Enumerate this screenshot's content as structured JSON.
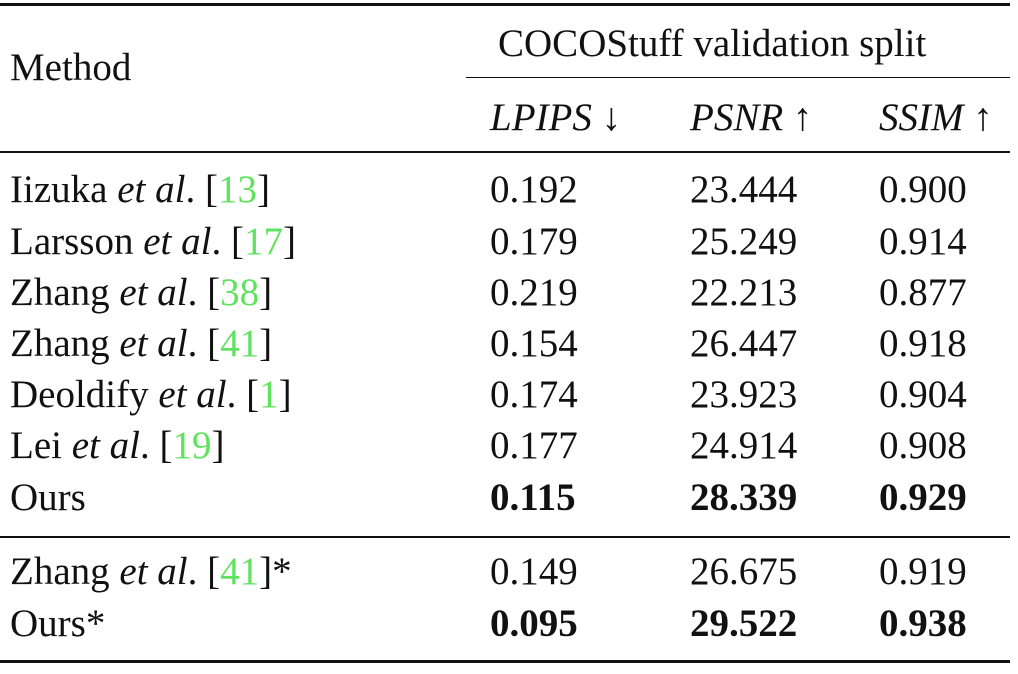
{
  "header": {
    "method": "Method",
    "group": "COCOStuff validation split",
    "metrics": [
      {
        "name": "LPIPS",
        "arrow": "↓"
      },
      {
        "name": "PSNR",
        "arrow": "↑"
      },
      {
        "name": "SSIM",
        "arrow": "↑"
      }
    ]
  },
  "rows": [
    {
      "name": "Iizuka",
      "etal": "et al",
      "cite": "13",
      "suffix": "",
      "lpips": "0.192",
      "psnr": "23.444",
      "ssim": "0.900"
    },
    {
      "name": "Larsson",
      "etal": "et al",
      "cite": "17",
      "suffix": "",
      "lpips": "0.179",
      "psnr": "25.249",
      "ssim": "0.914"
    },
    {
      "name": "Zhang",
      "etal": "et al",
      "cite": "38",
      "suffix": "",
      "lpips": "0.219",
      "psnr": "22.213",
      "ssim": "0.877"
    },
    {
      "name": "Zhang",
      "etal": "et al",
      "cite": "41",
      "suffix": "",
      "lpips": "0.154",
      "psnr": "26.447",
      "ssim": "0.918"
    },
    {
      "name": "Deoldify",
      "etal": "et al",
      "cite": "1",
      "suffix": "",
      "lpips": "0.174",
      "psnr": "23.923",
      "ssim": "0.904"
    },
    {
      "name": "Lei",
      "etal": "et al",
      "cite": "19",
      "suffix": "",
      "lpips": "0.177",
      "psnr": "24.914",
      "ssim": "0.908"
    },
    {
      "name": "Ours",
      "lpips": "0.115",
      "psnr": "28.339",
      "ssim": "0.929"
    }
  ],
  "rows2": [
    {
      "name": "Zhang",
      "etal": "et al",
      "cite": "41",
      "suffix": "*",
      "lpips": "0.149",
      "psnr": "26.675",
      "ssim": "0.919"
    },
    {
      "name": "Ours*",
      "lpips": "0.095",
      "psnr": "29.522",
      "ssim": "0.938"
    }
  ]
}
